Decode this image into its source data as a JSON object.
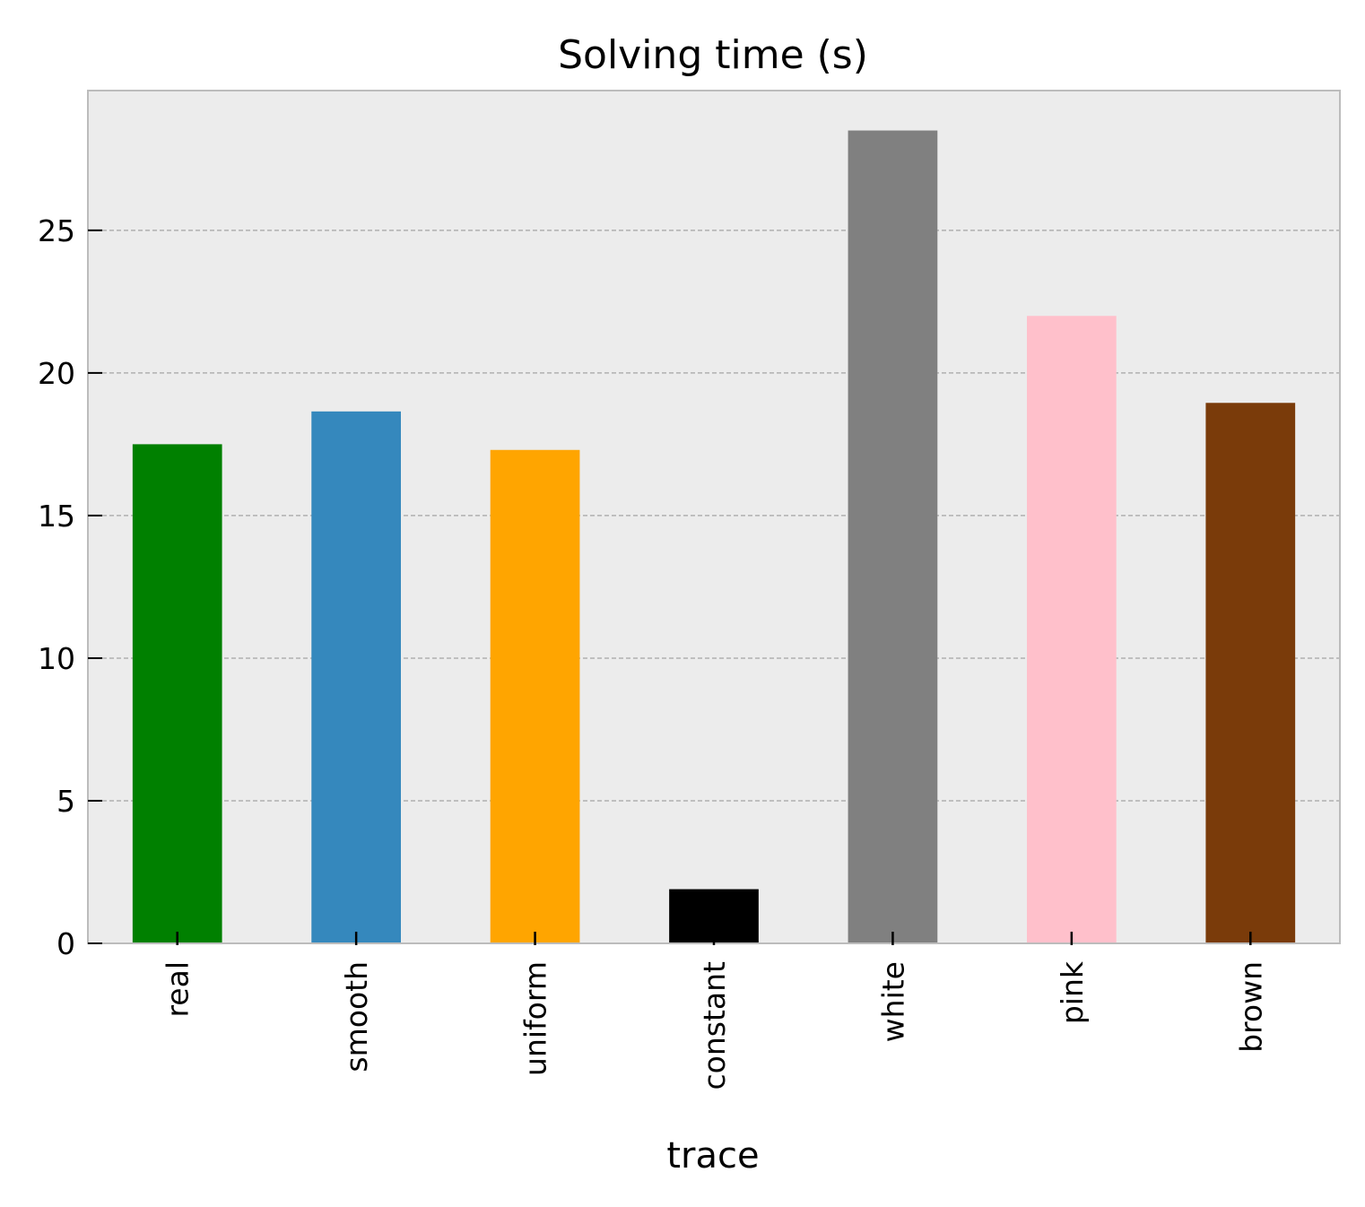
{
  "chart_data": {
    "type": "bar",
    "title": "Solving time (s)",
    "xlabel": "trace",
    "ylabel": "",
    "categories": [
      "real",
      "smooth",
      "uniform",
      "constant",
      "white",
      "pink",
      "brown"
    ],
    "values": [
      17.5,
      18.65,
      17.3,
      1.9,
      28.5,
      22.0,
      18.95
    ],
    "bar_colors": [
      "#008000",
      "#3588bd",
      "#ffa500",
      "#000000",
      "#808080",
      "#ffc0cb",
      "#7a3b0a"
    ],
    "ylim": [
      0,
      29.9
    ],
    "yticks": [
      0,
      5,
      10,
      15,
      20,
      25
    ],
    "grid": "y dashed",
    "legend": "none",
    "background_color": "#ececec",
    "grid_color": "#b0b0b0",
    "spine_color": "#bcbcbc"
  }
}
